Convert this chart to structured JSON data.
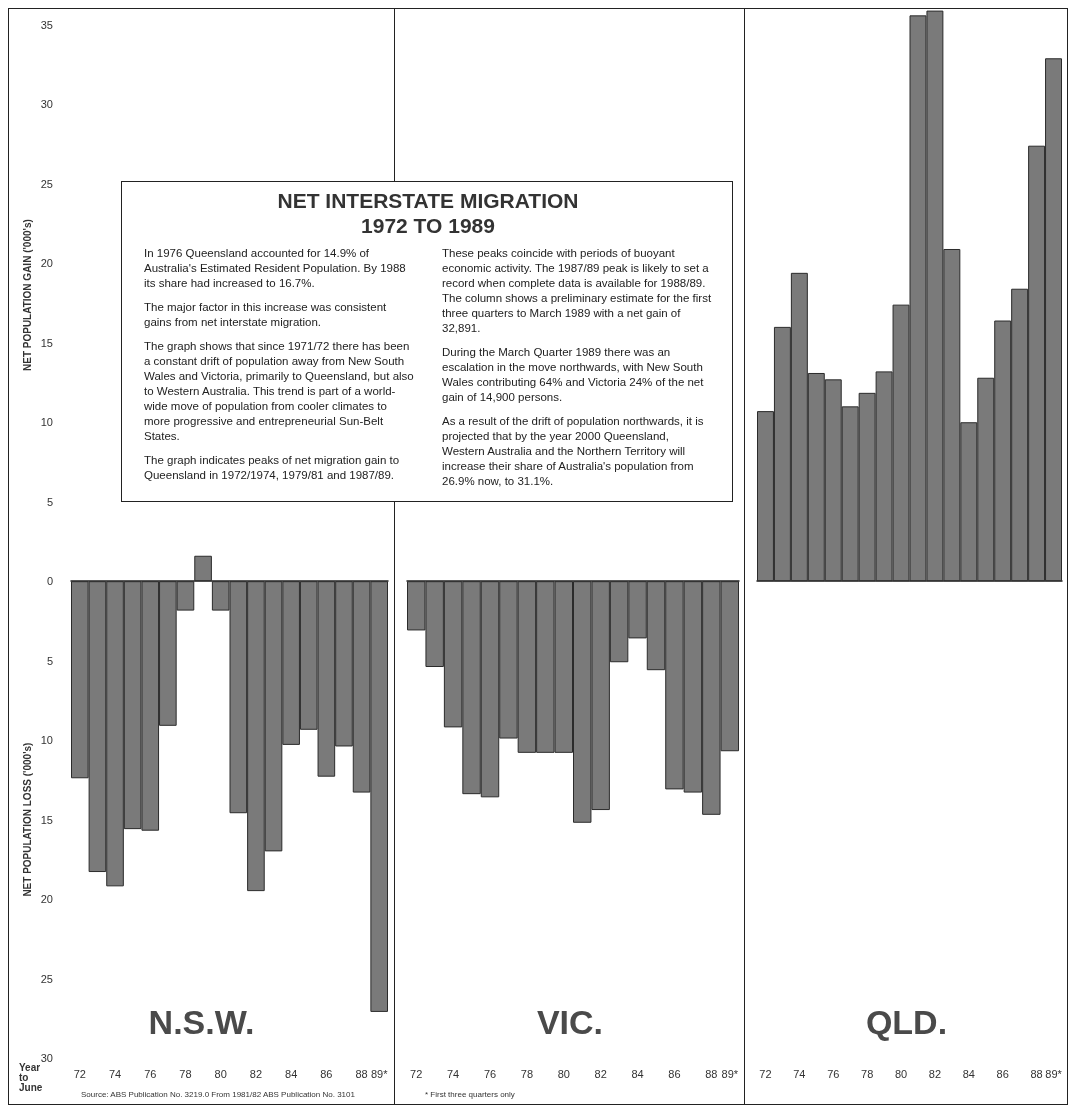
{
  "chart_data": [
    {
      "type": "bar",
      "title": "N.S.W.",
      "xlabel": "Year to June",
      "ylabel": "NET POPULATION GAIN ('000's)",
      "categories": [
        "72",
        null,
        "74",
        null,
        "76",
        null,
        "78",
        null,
        "80",
        null,
        "82",
        null,
        "84",
        null,
        "86",
        null,
        "88",
        "89*"
      ],
      "values": [
        -12.4,
        -18.3,
        -19.2,
        -15.6,
        -15.7,
        -9.1,
        -1.85,
        1.6,
        -1.85,
        -14.6,
        -19.5,
        -17.0,
        -10.3,
        -9.35,
        -12.3,
        -10.4,
        -13.3,
        -27.1
      ],
      "color": "#7a7a7a",
      "ylim": [
        -30,
        36
      ],
      "yticks": [
        {
          "value": -30,
          "label": "30"
        },
        {
          "value": -25,
          "label": "25"
        },
        {
          "value": -20,
          "label": "20"
        },
        {
          "value": -15,
          "label": "15"
        },
        {
          "value": -10,
          "label": "10"
        },
        {
          "value": -5,
          "label": "5"
        },
        0,
        5,
        10,
        15,
        20,
        25,
        30,
        35
      ],
      "annotations": [
        "NET POPULATION LOSS ('000's)",
        "Source: ABS Publication No. 3219.0 From 1981/82 ABS Publication No. 3101"
      ]
    },
    {
      "type": "bar",
      "title": "VIC.",
      "categories": [
        "72",
        null,
        "74",
        null,
        "76",
        null,
        "78",
        null,
        "80",
        null,
        "82",
        null,
        "84",
        null,
        "86",
        null,
        "88",
        "89*"
      ],
      "values": [
        -3.1,
        -5.4,
        -9.2,
        -13.4,
        -13.6,
        -9.9,
        -10.8,
        -10.8,
        -10.8,
        -15.2,
        -14.4,
        -5.1,
        -3.6,
        -5.6,
        -13.1,
        -13.3,
        -14.7,
        -10.7
      ],
      "color": "#7a7a7a",
      "ylim": [
        -30,
        36
      ],
      "tick_labels": "x",
      "annotations": [
        "* First three quarters only"
      ]
    },
    {
      "type": "bar",
      "title": "QLD.",
      "categories": [
        "72",
        null,
        "74",
        null,
        "76",
        null,
        "78",
        null,
        "80",
        null,
        "82",
        null,
        "84",
        null,
        "86",
        null,
        "88",
        "89*"
      ],
      "values": [
        10.7,
        16.0,
        19.4,
        13.1,
        12.7,
        11.0,
        11.85,
        13.2,
        17.4,
        35.6,
        35.9,
        20.9,
        10.0,
        12.8,
        16.4,
        18.4,
        27.4,
        32.9
      ],
      "color": "#7a7a7a",
      "ylim": [
        -30,
        36
      ],
      "tick_labels": "x"
    },
    {
      "type": "other",
      "title": "NET INTERSTATE MIGRATION\n1972 TO 1989",
      "annotations": [
        "In 1976 Queensland accounted for 14.9% of Australia's Estimated Resident Population.  By 1988 its share had increased to 16.7%.",
        "The major factor in this increase was consistent gains from net interstate migration.",
        "The graph shows that since 1971/72 there has been a constant drift of population away from New South Wales and Victoria, primarily to Queensland, but also to Western Australia. This trend is part of a world-wide move of population from cooler climates to more progressive and entrepreneurial Sun-Belt States.",
        "The graph indicates peaks of net migration gain to Queensland in 1972/1974, 1979/81 and 1987/89. These peaks coincide with periods of buoyant economic activity. The 1987/89 peak is likely to set a record when complete data is available for 1988/89. The column shows a preliminary estimate for the first three quarters to March 1989 with a net gain of 32,891.",
        "During the March Quarter 1989 there was an escalation in the move northwards, with New South Wales contributing 64% and Victoria 24% of the net gain of 14,900 persons.",
        "As a result of the drift of population northwards, it is projected that by the year 2000 Queensland, Western Australia and the Northern Territory will increase their share of Australia's population from 26.9% now, to 31.1%."
      ]
    }
  ]
}
